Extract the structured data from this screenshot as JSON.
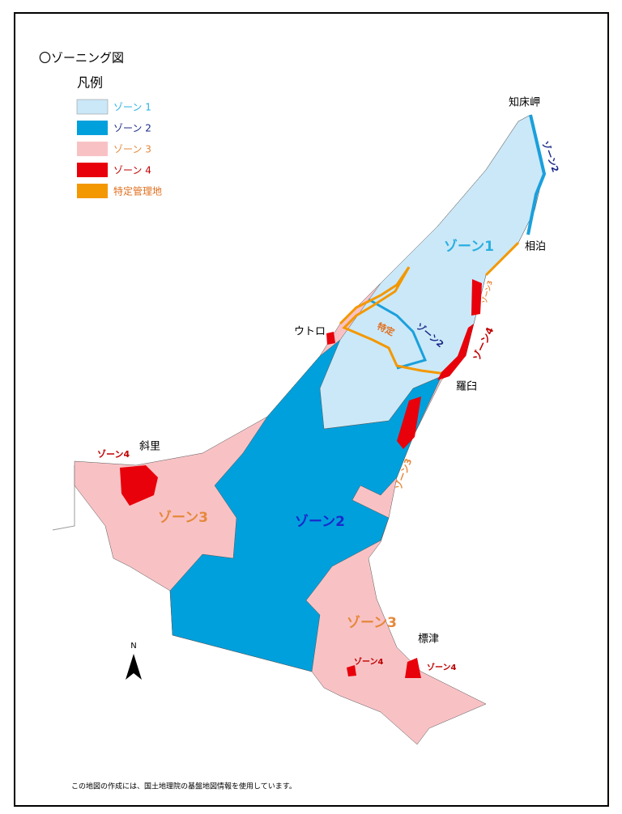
{
  "title": "〇ゾーニング図",
  "legend": {
    "title": "凡例",
    "items": [
      {
        "label": "ゾーン 1"
      },
      {
        "label": "ゾーン 2"
      },
      {
        "label": "ゾーン 3"
      },
      {
        "label": "ゾーン 4"
      },
      {
        "label": "特定管理地"
      }
    ]
  },
  "places": [
    "知床岬",
    "相泊",
    "ウトロ",
    "羅臼",
    "斜里",
    "標津"
  ],
  "zone_labels": [
    "ゾーン1",
    "ゾーン2",
    "ゾーン2",
    "ゾーン2",
    "ゾーン3",
    "ゾーン3",
    "ゾーン3",
    "ゾーン3",
    "ゾーン4",
    "ゾーン4",
    "ゾーン4",
    "ゾーン4",
    "特定"
  ],
  "north": "N",
  "footer": "この地図の作成には、国土地理院の基盤地図情報を使用しています。"
}
